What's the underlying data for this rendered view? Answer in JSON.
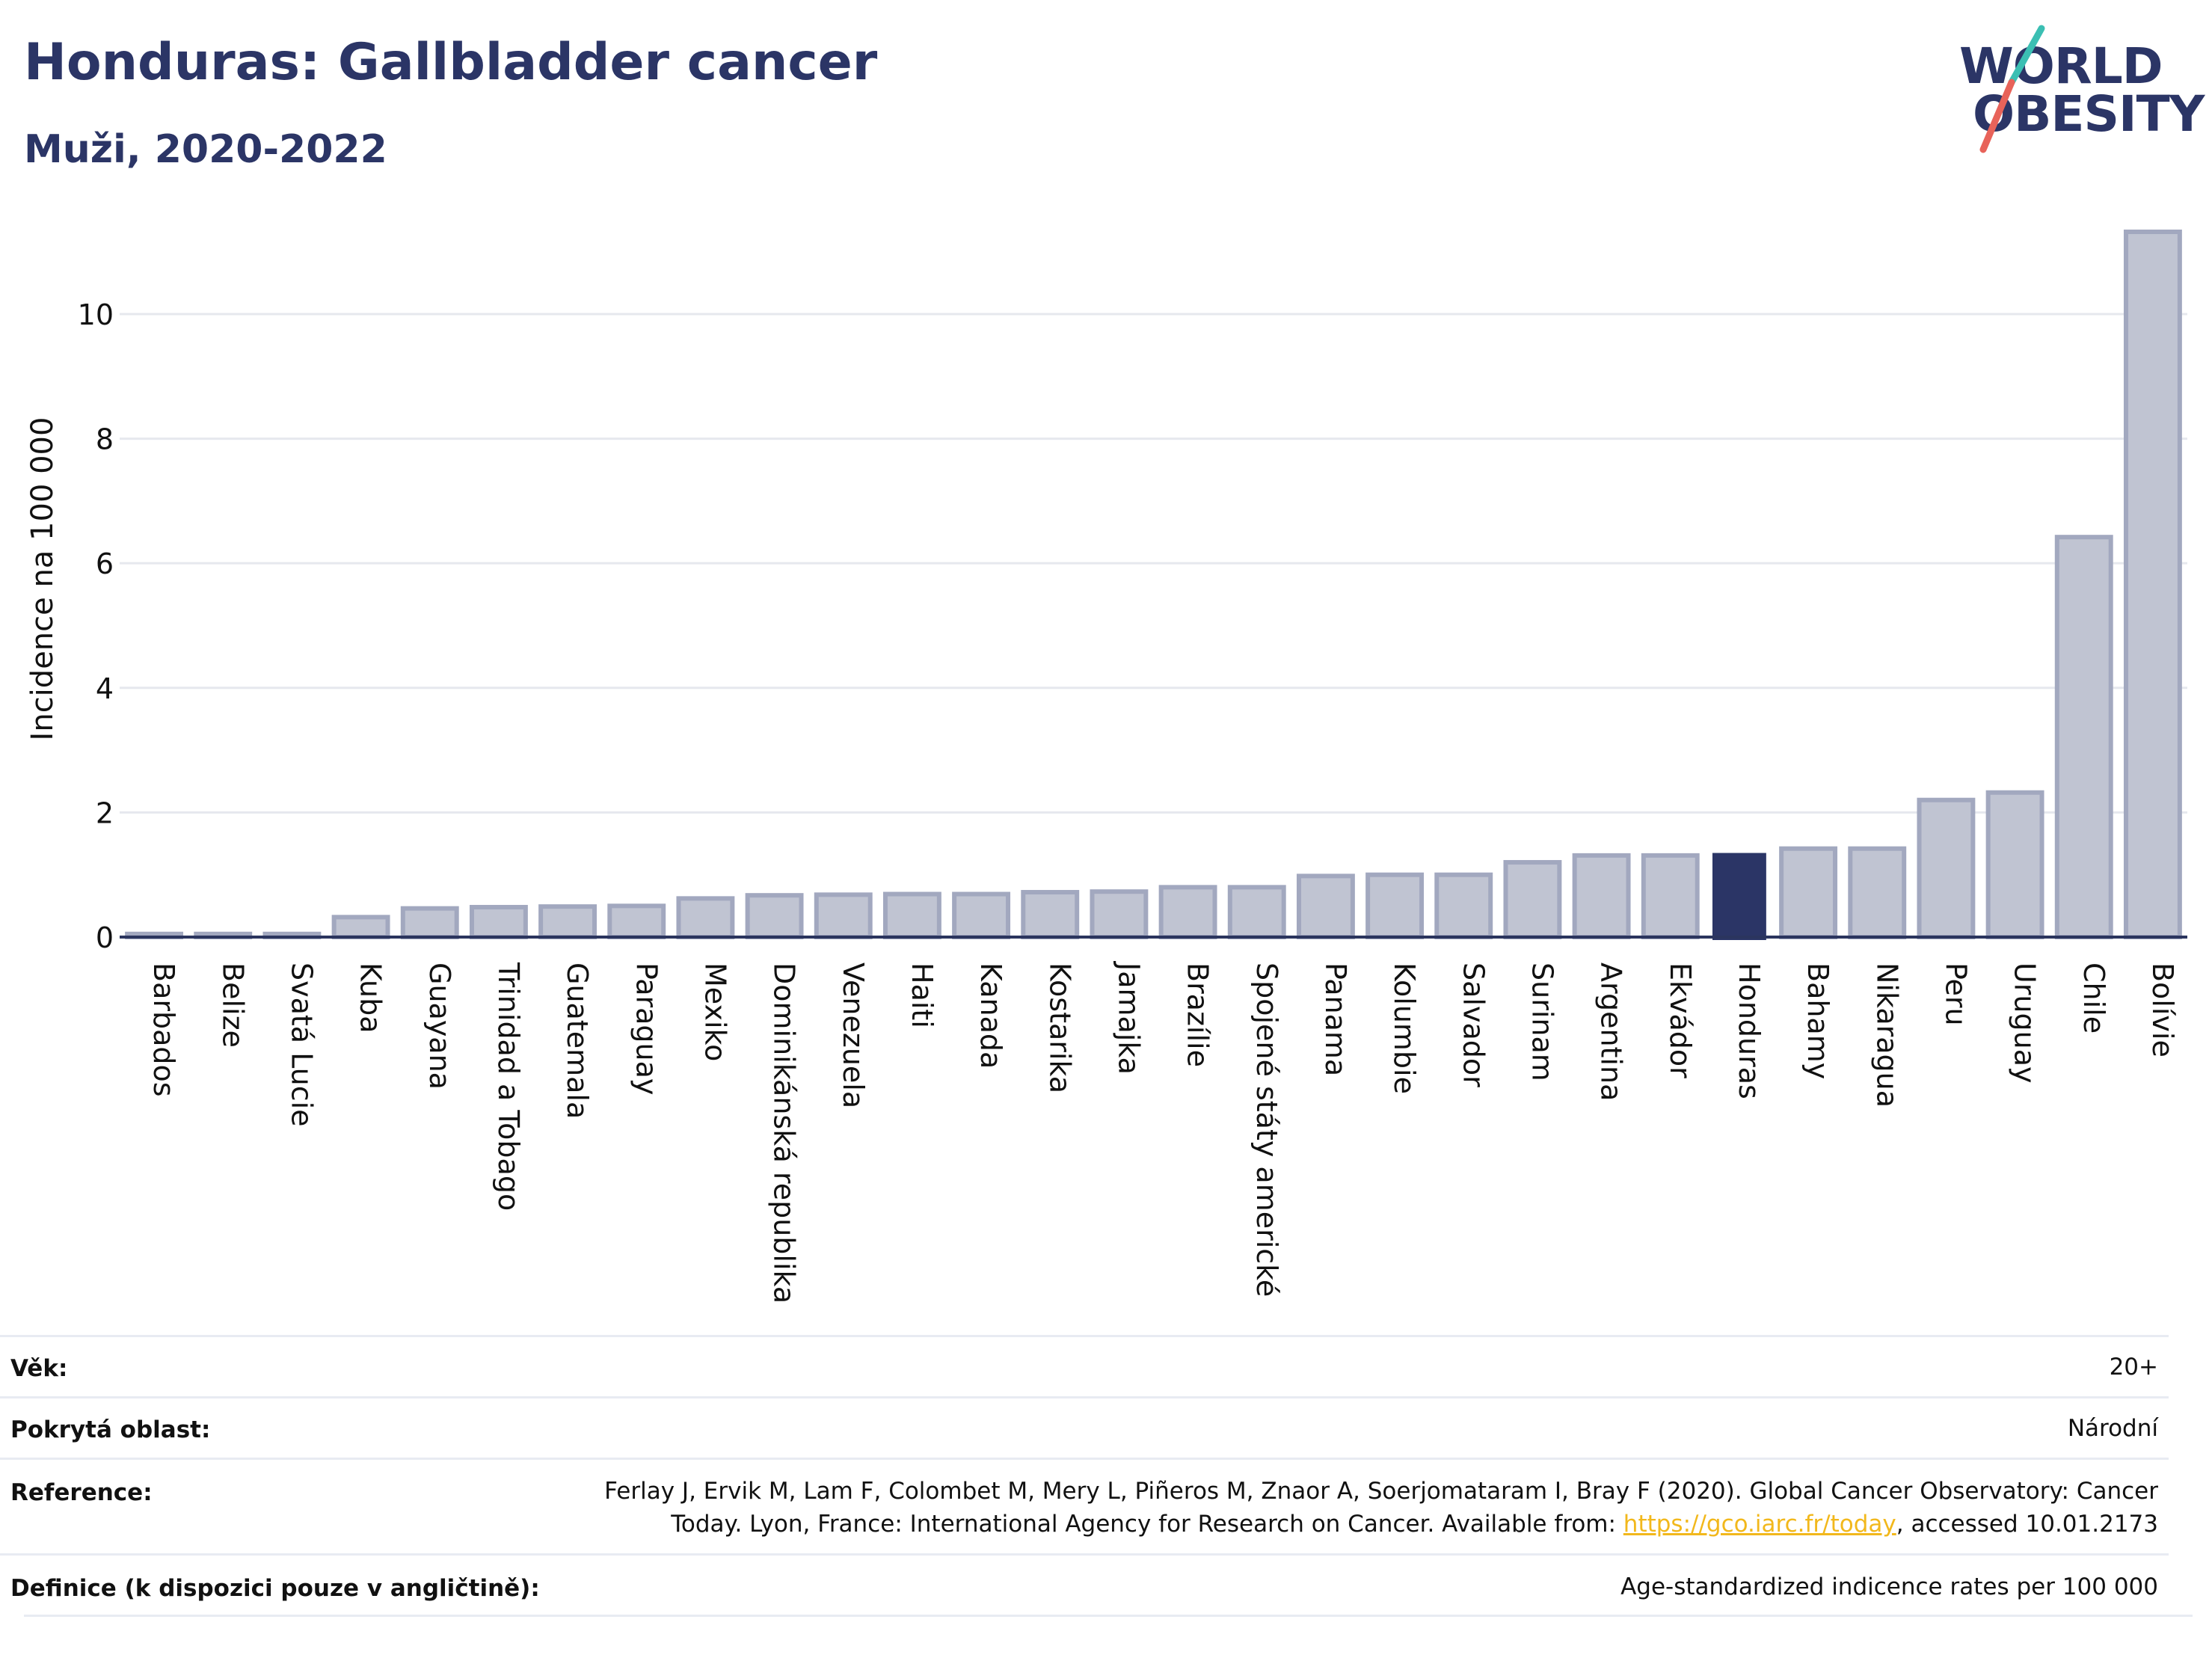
{
  "title": "Honduras: Gallbladder cancer",
  "subtitle": "Muži, 2020-2022",
  "logo": {
    "line1": "WORLD",
    "line2": "OBESITY",
    "accent_teal": "#3bbfb3",
    "accent_red": "#e8635a"
  },
  "colors": {
    "bar": "#c0c4d2",
    "bar_border": "#a2a8bf",
    "highlight": "#2b3566",
    "grid": "#e6e8ee",
    "axis": "#2b355e"
  },
  "chart_data": {
    "type": "bar",
    "ylabel": "Incidence na 100 000",
    "ylim": [
      0,
      11.5
    ],
    "yticks": [
      0,
      2,
      4,
      6,
      8,
      10
    ],
    "highlight": "Honduras",
    "categories": [
      "Barbados",
      "Belize",
      "Svatá Lucie",
      "Kuba",
      "Guayana",
      "Trinidad a Tobago",
      "Guatemala",
      "Paraguay",
      "Mexiko",
      "Dominikánská republika",
      "Venezuela",
      "Haiti",
      "Kanada",
      "Kostarika",
      "Jamajka",
      "Brazílie",
      "Spojené státy americké",
      "Panama",
      "Kolumbie",
      "Salvador",
      "Surinam",
      "Argentina",
      "Ekvádor",
      "Honduras",
      "Bahamy",
      "Nikaragua",
      "Peru",
      "Uruguay",
      "Chile",
      "Bolívie"
    ],
    "values": [
      0.05,
      0.05,
      0.05,
      0.32,
      0.46,
      0.48,
      0.49,
      0.5,
      0.62,
      0.67,
      0.68,
      0.69,
      0.69,
      0.72,
      0.73,
      0.8,
      0.8,
      0.98,
      1.0,
      1.0,
      1.2,
      1.31,
      1.31,
      1.35,
      1.42,
      1.42,
      2.2,
      2.32,
      6.42,
      11.32
    ]
  },
  "meta": {
    "age_label": "Věk:",
    "age_value": "20+",
    "coverage_label": "Pokrytá oblast:",
    "coverage_value": "Národní",
    "reference_label": "Reference:",
    "reference_line1": "Ferlay J, Ervik M, Lam F, Colombet M, Mery L, Piñeros M, Znaor A, Soerjomataram I, Bray F (2020). Global Cancer Observatory: Cancer",
    "reference_line2_pre": "Today. Lyon, France: International Agency for Research on Cancer. Available from: ",
    "reference_link": "https://gco.iarc.fr/today",
    "reference_line2_post": ", accessed 10.01.2173",
    "definition_label": "Definice (k dispozici pouze v angličtině):",
    "definition_value": "Age-standardized indicence rates per 100 000"
  }
}
